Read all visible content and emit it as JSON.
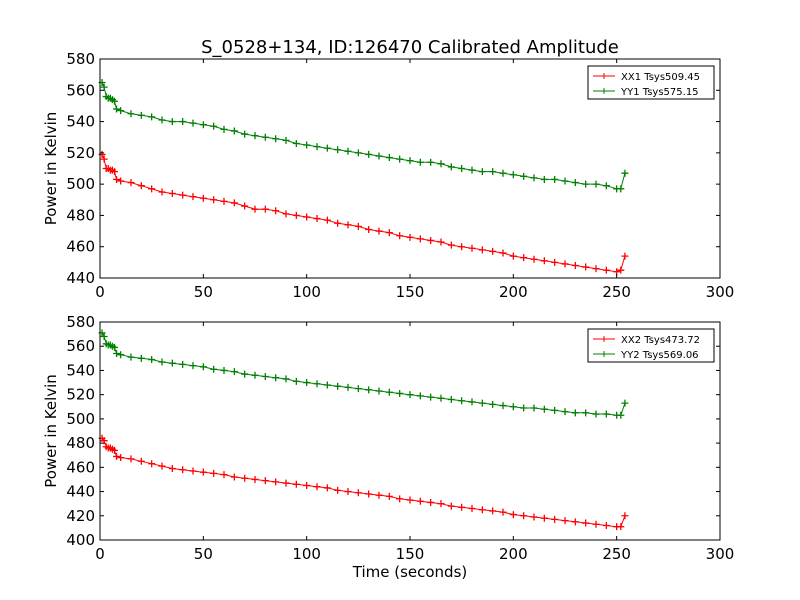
{
  "title": "S_0528+134, ID:126470 Calibrated Amplitude",
  "chart_data": [
    {
      "type": "line",
      "title": "S_0528+134, ID:126470 Calibrated Amplitude",
      "xlabel": "",
      "ylabel": "Power in Kelvin",
      "xlim": [
        0,
        300
      ],
      "ylim": [
        440,
        580
      ],
      "xticks": [
        0,
        50,
        100,
        150,
        200,
        250,
        300
      ],
      "yticks": [
        440,
        460,
        480,
        500,
        520,
        540,
        560,
        580
      ],
      "grid": false,
      "legend_position": "top-right",
      "marker": "plus",
      "series": [
        {
          "name": "XX1 Tsys509.45",
          "color": "#ff0000",
          "x": [
            1,
            2,
            3,
            4,
            5,
            6,
            7,
            8,
            10,
            15,
            20,
            25,
            30,
            35,
            40,
            45,
            50,
            55,
            60,
            65,
            70,
            75,
            80,
            85,
            90,
            95,
            100,
            105,
            110,
            115,
            120,
            125,
            130,
            135,
            140,
            145,
            150,
            155,
            160,
            165,
            170,
            175,
            180,
            185,
            190,
            195,
            200,
            205,
            210,
            215,
            220,
            225,
            230,
            235,
            240,
            245,
            250,
            252,
            254
          ],
          "y": [
            519,
            516,
            510,
            510,
            509,
            509,
            508,
            503,
            502,
            501,
            499,
            497,
            495,
            494,
            493,
            492,
            491,
            490,
            489,
            488,
            486,
            484,
            484,
            483,
            481,
            480,
            479,
            478,
            477,
            475,
            474,
            473,
            471,
            470,
            469,
            467,
            466,
            465,
            464,
            463,
            461,
            460,
            459,
            458,
            457,
            456,
            454,
            453,
            452,
            451,
            450,
            449,
            448,
            447,
            446,
            445,
            444,
            445,
            454
          ]
        },
        {
          "name": "YY1 Tsys575.15",
          "color": "#008000",
          "x": [
            1,
            2,
            3,
            4,
            5,
            6,
            7,
            8,
            10,
            15,
            20,
            25,
            30,
            35,
            40,
            45,
            50,
            55,
            60,
            65,
            70,
            75,
            80,
            85,
            90,
            95,
            100,
            105,
            110,
            115,
            120,
            125,
            130,
            135,
            140,
            145,
            150,
            155,
            160,
            165,
            170,
            175,
            180,
            185,
            190,
            195,
            200,
            205,
            210,
            215,
            220,
            225,
            230,
            235,
            240,
            245,
            250,
            252,
            254
          ],
          "y": [
            565,
            562,
            556,
            555,
            555,
            554,
            553,
            548,
            547,
            545,
            544,
            543,
            541,
            540,
            540,
            539,
            538,
            537,
            535,
            534,
            532,
            531,
            530,
            529,
            528,
            526,
            525,
            524,
            523,
            522,
            521,
            520,
            519,
            518,
            517,
            516,
            515,
            514,
            514,
            513,
            511,
            510,
            509,
            508,
            508,
            507,
            506,
            505,
            504,
            503,
            503,
            502,
            501,
            500,
            500,
            499,
            497,
            497,
            507
          ]
        }
      ]
    },
    {
      "type": "line",
      "title": "",
      "xlabel": "Time (seconds)",
      "ylabel": "Power in Kelvin",
      "xlim": [
        0,
        300
      ],
      "ylim": [
        400,
        580
      ],
      "xticks": [
        0,
        50,
        100,
        150,
        200,
        250,
        300
      ],
      "yticks": [
        400,
        420,
        440,
        460,
        480,
        500,
        520,
        540,
        560,
        580
      ],
      "grid": false,
      "legend_position": "top-right",
      "marker": "plus",
      "series": [
        {
          "name": "XX2 Tsys473.72",
          "color": "#ff0000",
          "x": [
            1,
            2,
            3,
            4,
            5,
            6,
            7,
            8,
            10,
            15,
            20,
            25,
            30,
            35,
            40,
            45,
            50,
            55,
            60,
            65,
            70,
            75,
            80,
            85,
            90,
            95,
            100,
            105,
            110,
            115,
            120,
            125,
            130,
            135,
            140,
            145,
            150,
            155,
            160,
            165,
            170,
            175,
            180,
            185,
            190,
            195,
            200,
            205,
            210,
            215,
            220,
            225,
            230,
            235,
            240,
            245,
            250,
            252,
            254
          ],
          "y": [
            484,
            482,
            477,
            476,
            476,
            475,
            474,
            469,
            468,
            467,
            465,
            463,
            461,
            459,
            458,
            457,
            456,
            455,
            454,
            452,
            451,
            450,
            449,
            448,
            447,
            446,
            445,
            444,
            443,
            441,
            440,
            439,
            438,
            437,
            436,
            434,
            433,
            432,
            431,
            430,
            428,
            427,
            426,
            425,
            424,
            423,
            421,
            420,
            419,
            418,
            417,
            416,
            415,
            414,
            413,
            412,
            411,
            411,
            420
          ]
        },
        {
          "name": "YY2 Tsys569.06",
          "color": "#008000",
          "x": [
            1,
            2,
            3,
            4,
            5,
            6,
            7,
            8,
            10,
            15,
            20,
            25,
            30,
            35,
            40,
            45,
            50,
            55,
            60,
            65,
            70,
            75,
            80,
            85,
            90,
            95,
            100,
            105,
            110,
            115,
            120,
            125,
            130,
            135,
            140,
            145,
            150,
            155,
            160,
            165,
            170,
            175,
            180,
            185,
            190,
            195,
            200,
            205,
            210,
            215,
            220,
            225,
            230,
            235,
            240,
            245,
            250,
            252,
            254
          ],
          "y": [
            571,
            568,
            562,
            561,
            561,
            560,
            559,
            554,
            553,
            551,
            550,
            549,
            547,
            546,
            545,
            544,
            543,
            541,
            540,
            539,
            537,
            536,
            535,
            534,
            533,
            531,
            530,
            529,
            528,
            527,
            526,
            525,
            524,
            523,
            522,
            521,
            520,
            519,
            518,
            517,
            516,
            515,
            514,
            513,
            512,
            511,
            510,
            509,
            509,
            508,
            507,
            506,
            505,
            505,
            504,
            504,
            503,
            503,
            513
          ]
        }
      ]
    }
  ]
}
